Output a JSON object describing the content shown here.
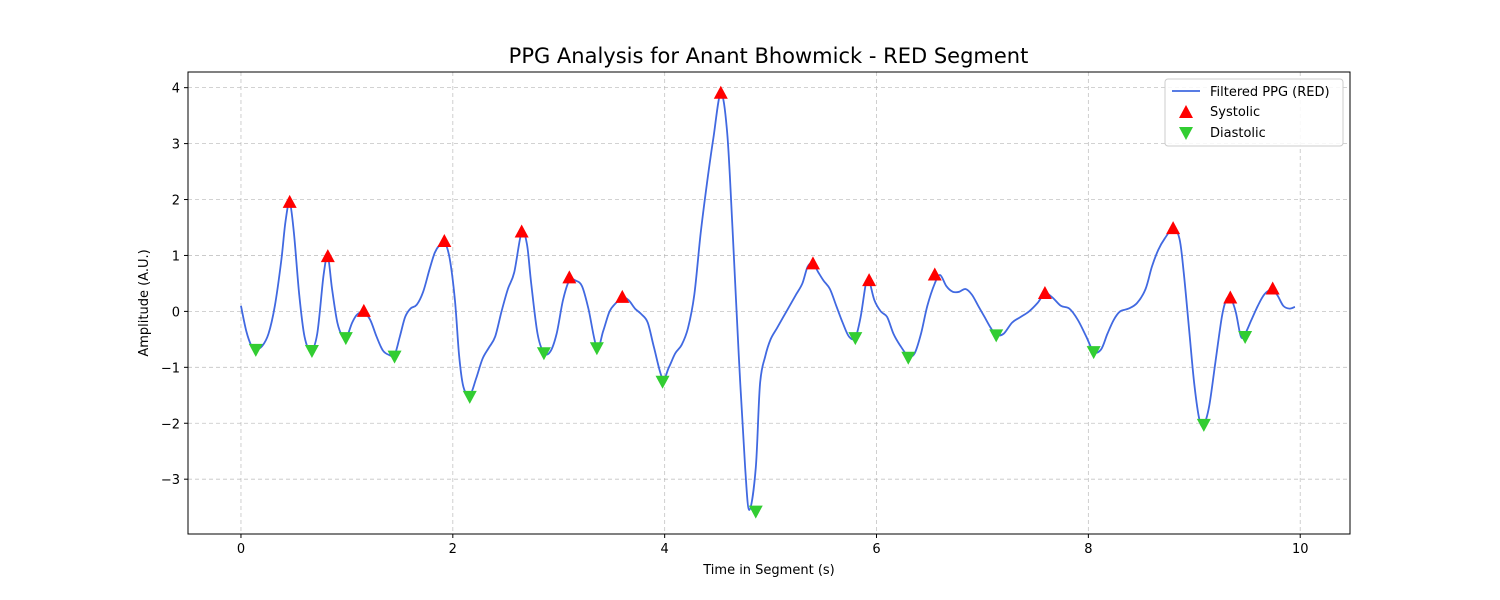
{
  "chart_data": {
    "type": "line",
    "title": "PPG Analysis for Anant Bhowmick - RED Segment",
    "xlabel": "Time in Segment (s)",
    "ylabel": "Amplitude (A.U.)",
    "xlim": [
      -0.5,
      10.47
    ],
    "ylim": [
      -3.98,
      4.28
    ],
    "xticks": [
      0,
      2,
      4,
      6,
      8,
      10
    ],
    "xtick_labels": [
      "0",
      "2",
      "4",
      "6",
      "8",
      "10"
    ],
    "yticks": [
      4,
      3,
      2,
      1,
      0,
      -1,
      -2,
      -3
    ],
    "ytick_labels": [
      "4",
      "3",
      "2",
      "1",
      "0",
      "−1",
      "−2",
      "−3"
    ],
    "grid": true,
    "legend_position": "top-right",
    "colors": {
      "line": "#4169e1",
      "systolic": "#ff0000",
      "diastolic": "#32cd32"
    },
    "series": [
      {
        "name": "Filtered PPG (RED)",
        "kind": "line",
        "x": [
          0.0,
          0.05,
          0.1,
          0.14,
          0.2,
          0.26,
          0.32,
          0.38,
          0.42,
          0.46,
          0.5,
          0.55,
          0.6,
          0.66,
          0.72,
          0.78,
          0.82,
          0.86,
          0.91,
          0.96,
          1.0,
          1.05,
          1.1,
          1.16,
          1.22,
          1.28,
          1.34,
          1.4,
          1.45,
          1.5,
          1.55,
          1.6,
          1.66,
          1.72,
          1.78,
          1.83,
          1.88,
          1.92,
          1.97,
          2.02,
          2.06,
          2.1,
          2.16,
          2.22,
          2.28,
          2.34,
          2.4,
          2.46,
          2.52,
          2.58,
          2.65,
          2.7,
          2.74,
          2.8,
          2.86,
          2.92,
          2.98,
          3.04,
          3.1,
          3.16,
          3.22,
          3.28,
          3.36,
          3.42,
          3.48,
          3.54,
          3.6,
          3.66,
          3.72,
          3.78,
          3.84,
          3.9,
          3.98,
          4.04,
          4.1,
          4.16,
          4.22,
          4.28,
          4.34,
          4.4,
          4.46,
          4.53,
          4.59,
          4.64,
          4.7,
          4.76,
          4.8,
          4.86,
          4.9,
          4.95,
          5.0,
          5.06,
          5.12,
          5.18,
          5.24,
          5.3,
          5.35,
          5.4,
          5.45,
          5.5,
          5.56,
          5.62,
          5.68,
          5.74,
          5.8,
          5.85,
          5.9,
          5.93,
          5.98,
          6.04,
          6.1,
          6.16,
          6.22,
          6.3,
          6.36,
          6.42,
          6.48,
          6.55,
          6.6,
          6.66,
          6.72,
          6.78,
          6.84,
          6.9,
          6.96,
          7.02,
          7.08,
          7.13,
          7.2,
          7.28,
          7.36,
          7.44,
          7.52,
          7.59,
          7.66,
          7.74,
          7.82,
          7.9,
          7.98,
          8.05,
          8.12,
          8.18,
          8.24,
          8.3,
          8.38,
          8.46,
          8.54,
          8.6,
          8.66,
          8.72,
          8.8,
          8.86,
          8.9,
          8.95,
          9.0,
          9.05,
          9.09,
          9.14,
          9.2,
          9.26,
          9.3,
          9.34,
          9.39,
          9.44,
          9.48,
          9.54,
          9.6,
          9.66,
          9.72,
          9.78,
          9.84,
          9.9,
          9.95
        ],
        "y": [
          0.1,
          -0.35,
          -0.62,
          -0.68,
          -0.62,
          -0.4,
          0.1,
          0.9,
          1.6,
          1.95,
          1.4,
          0.3,
          -0.45,
          -0.7,
          -0.4,
          0.65,
          0.98,
          0.4,
          -0.2,
          -0.45,
          -0.45,
          -0.2,
          -0.05,
          -0.02,
          -0.15,
          -0.45,
          -0.7,
          -0.78,
          -0.78,
          -0.45,
          -0.1,
          0.05,
          0.12,
          0.35,
          0.75,
          1.05,
          1.2,
          1.25,
          0.95,
          0.2,
          -0.8,
          -1.35,
          -1.5,
          -1.2,
          -0.85,
          -0.65,
          -0.45,
          0.0,
          0.4,
          0.7,
          1.42,
          1.2,
          0.5,
          -0.4,
          -0.74,
          -0.72,
          -0.4,
          0.2,
          0.55,
          0.55,
          0.45,
          0.05,
          -0.65,
          -0.35,
          0.0,
          0.15,
          0.25,
          0.2,
          0.05,
          -0.05,
          -0.2,
          -0.65,
          -1.2,
          -1.0,
          -0.75,
          -0.6,
          -0.3,
          0.3,
          1.4,
          2.3,
          3.1,
          3.9,
          3.2,
          1.5,
          -0.8,
          -2.8,
          -3.55,
          -2.8,
          -1.3,
          -0.8,
          -0.5,
          -0.3,
          -0.1,
          0.1,
          0.3,
          0.5,
          0.8,
          0.85,
          0.7,
          0.55,
          0.4,
          0.1,
          -0.2,
          -0.45,
          -0.47,
          -0.1,
          0.5,
          0.55,
          0.2,
          0.0,
          -0.1,
          -0.4,
          -0.6,
          -0.8,
          -0.75,
          -0.4,
          0.1,
          0.5,
          0.65,
          0.45,
          0.35,
          0.35,
          0.4,
          0.3,
          0.1,
          -0.1,
          -0.3,
          -0.42,
          -0.4,
          -0.2,
          -0.1,
          0.0,
          0.15,
          0.32,
          0.25,
          0.1,
          0.05,
          -0.15,
          -0.45,
          -0.72,
          -0.68,
          -0.4,
          -0.15,
          0.0,
          0.05,
          0.15,
          0.4,
          0.8,
          1.1,
          1.3,
          1.48,
          1.3,
          0.7,
          -0.3,
          -1.3,
          -1.95,
          -2.02,
          -1.7,
          -0.9,
          -0.1,
          0.2,
          0.24,
          0.0,
          -0.45,
          -0.4,
          -0.15,
          0.1,
          0.3,
          0.38,
          0.3,
          0.1,
          0.05,
          0.08
        ]
      },
      {
        "name": "Systolic",
        "kind": "marker-up",
        "x": [
          0.46,
          0.82,
          1.16,
          1.92,
          2.65,
          3.1,
          3.6,
          4.53,
          5.4,
          5.93,
          6.55,
          7.59,
          8.8,
          9.34,
          9.74
        ],
        "y": [
          1.95,
          0.98,
          0.0,
          1.25,
          1.42,
          0.6,
          0.25,
          3.9,
          0.85,
          0.55,
          0.65,
          0.32,
          1.48,
          0.24,
          0.4
        ]
      },
      {
        "name": "Diastolic",
        "kind": "marker-down",
        "x": [
          0.14,
          0.67,
          0.99,
          1.45,
          2.16,
          2.86,
          3.36,
          3.98,
          4.86,
          5.8,
          6.3,
          7.13,
          8.05,
          9.09,
          9.48
        ],
        "y": [
          -0.68,
          -0.7,
          -0.47,
          -0.8,
          -1.52,
          -0.74,
          -0.65,
          -1.25,
          -3.57,
          -0.47,
          -0.82,
          -0.42,
          -0.72,
          -2.02,
          -0.45
        ]
      }
    ]
  }
}
